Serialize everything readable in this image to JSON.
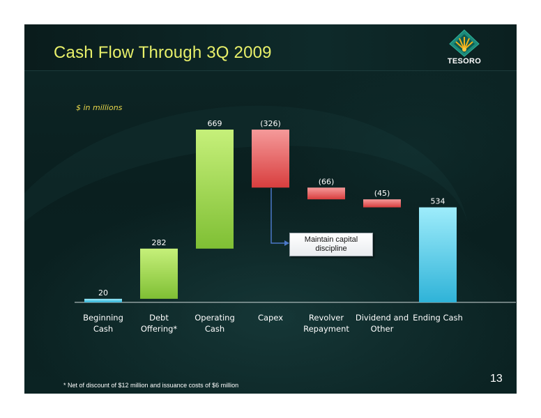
{
  "slide": {
    "title": "Cash Flow Through 3Q 2009",
    "logo_text": "TESORO",
    "footnote": "* Net of discount of $12 million and issuance costs of $6 million",
    "page_number": "13",
    "callout": "Maintain capital discipline"
  },
  "colors": {
    "positive_bar": "#9fd64a",
    "negative_bar": "#e15858",
    "total_bar": "#4fc6e4",
    "title": "#e8f06a",
    "labels": "#ffffff",
    "connector": "#4b78c8"
  },
  "chart_data": {
    "type": "bar",
    "subtitle": "$ in millions",
    "categories": [
      [
        "Beginning",
        "Cash"
      ],
      [
        "Debt",
        "Offering*"
      ],
      [
        "Operating",
        "Cash"
      ],
      [
        "Capex",
        ""
      ],
      [
        "Revolver",
        "Repayment"
      ],
      [
        "Dividend and",
        "Other"
      ],
      [
        "Ending Cash",
        ""
      ]
    ],
    "values": [
      20,
      282,
      669,
      -326,
      -66,
      -45,
      534
    ],
    "data_labels": [
      "20",
      "282",
      "669",
      "(326)",
      "(66)",
      "(45)",
      "534"
    ],
    "kinds": [
      "total",
      "increase",
      "increase",
      "decrease",
      "decrease",
      "decrease",
      "total"
    ],
    "ylim": [
      0,
      975
    ],
    "grid": false,
    "legend": "none"
  }
}
